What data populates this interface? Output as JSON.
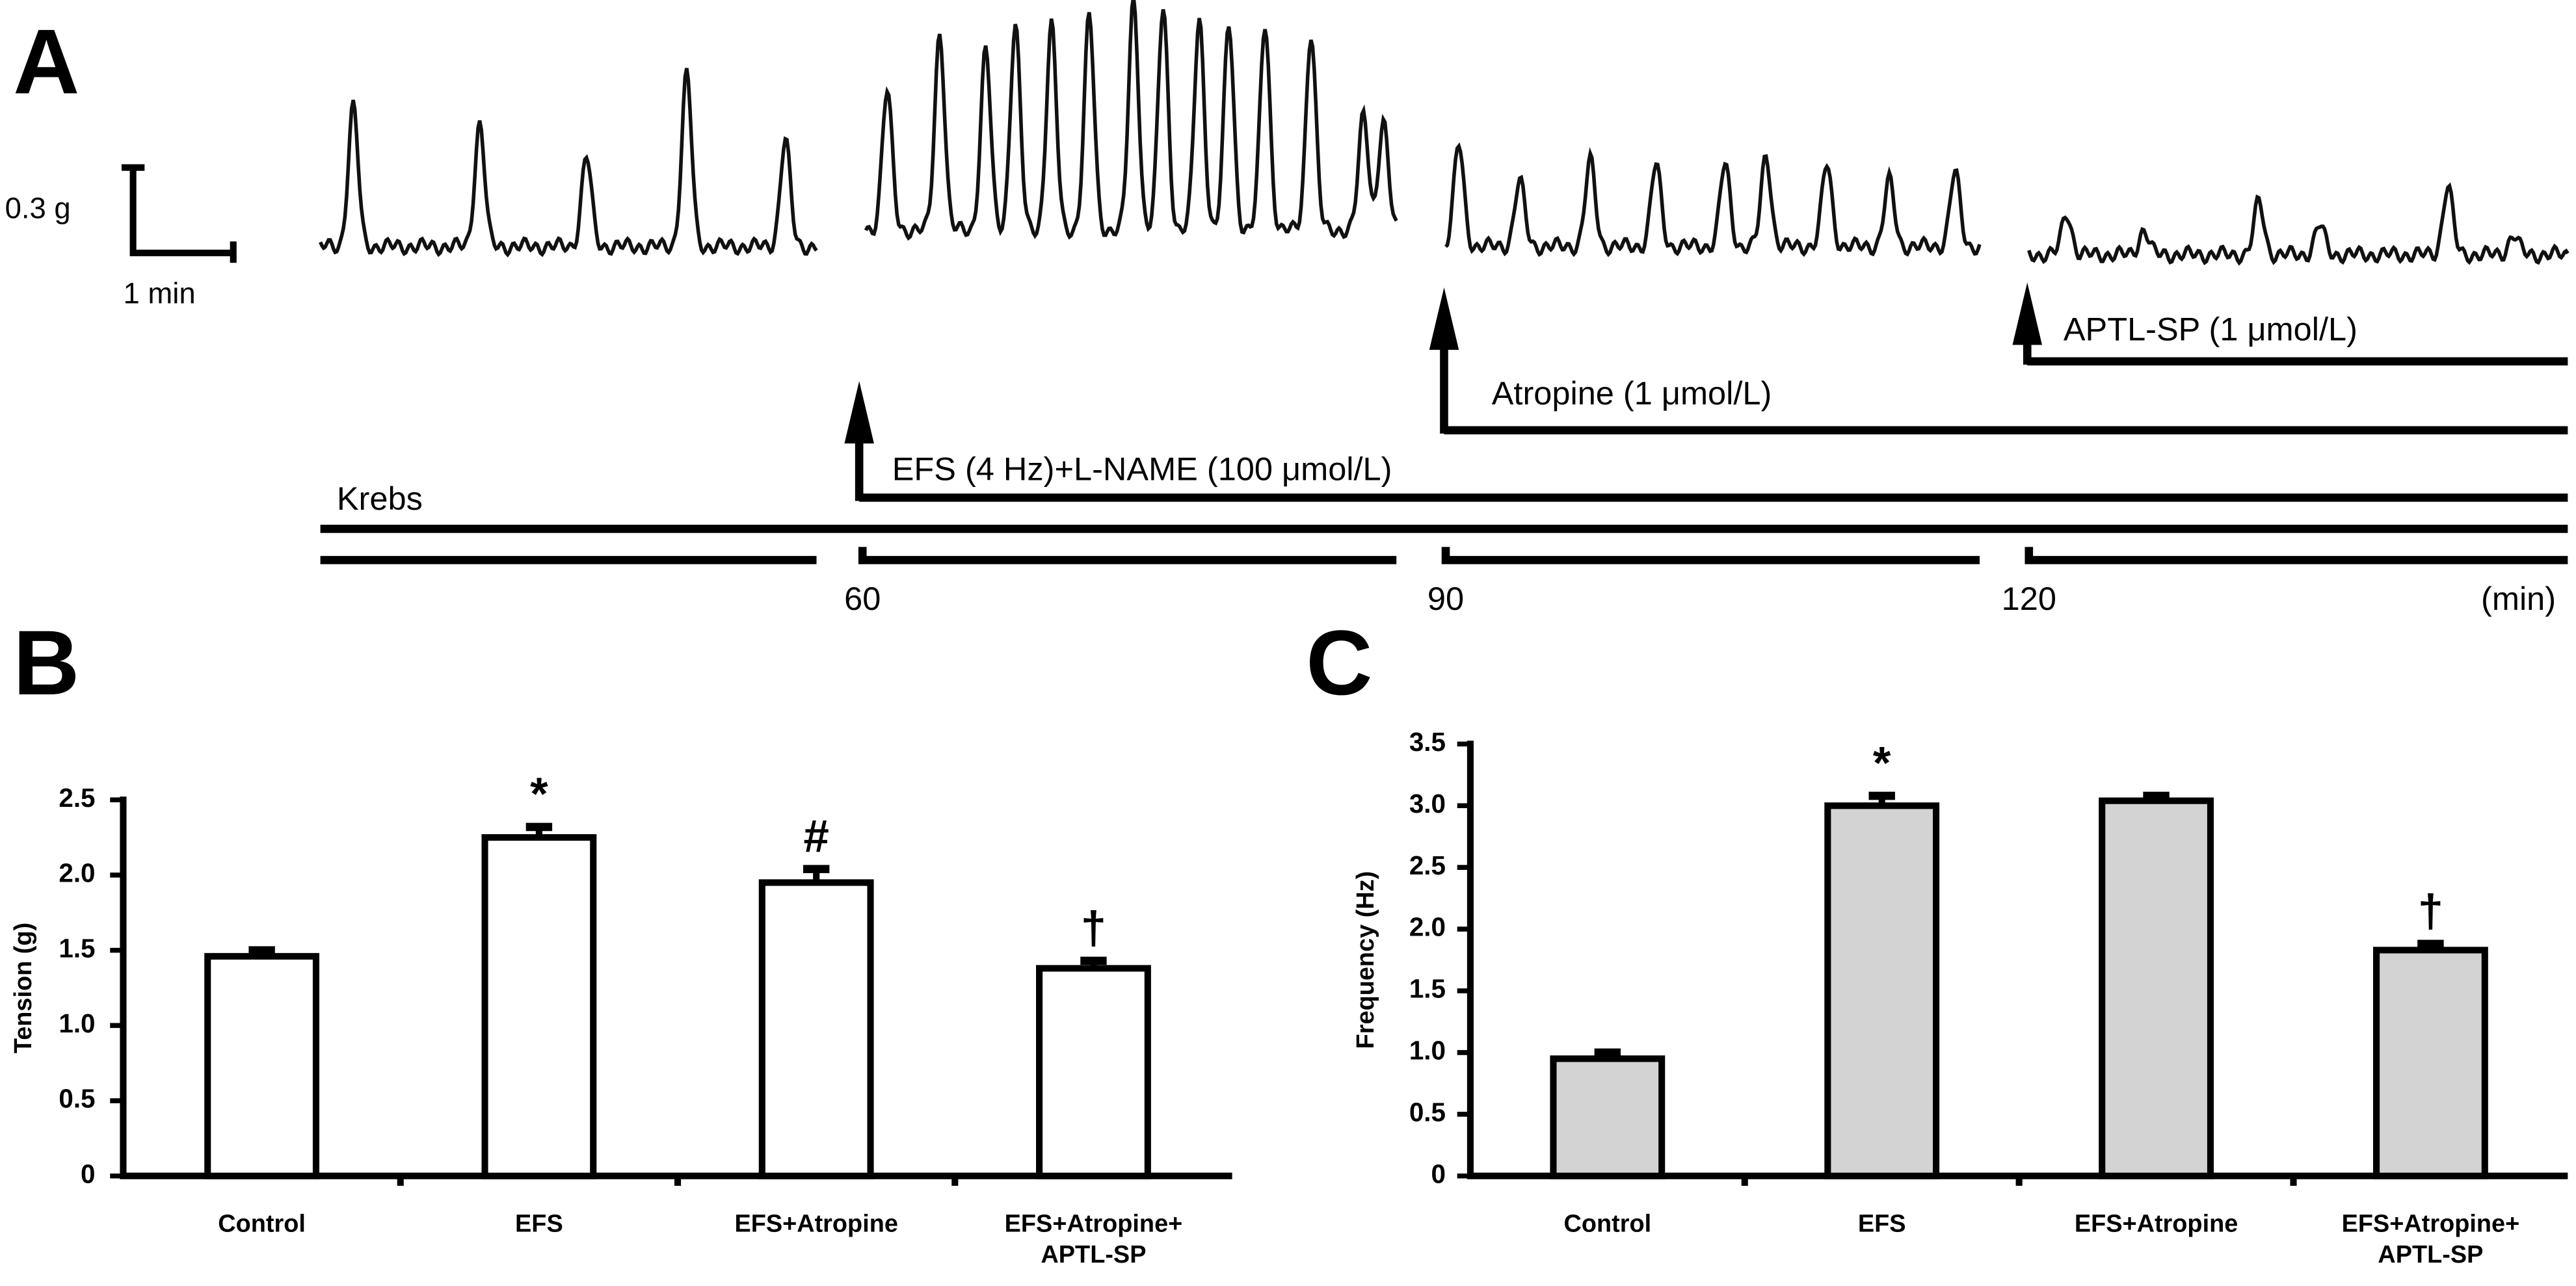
{
  "panel_a": {
    "panel_label": "A",
    "scale_y": "0.3 g",
    "scale_x": "1 min",
    "baseline": "Krebs",
    "treatments": [
      "EFS (4 Hz)+L-NAME  (100 μmol/L)",
      "Atropine (1 μmol/L)",
      "APTL-SP (1 μmol/L)"
    ],
    "time_ticks": [
      60,
      90,
      120
    ],
    "time_unit": "(min)"
  },
  "chart_data": [
    {
      "type": "bar",
      "panel_label": "B",
      "ylabel": "Tension (g)",
      "categories": [
        "Control",
        "EFS",
        "EFS+Atropine",
        "EFS+Atropine+\nAPTL-SP"
      ],
      "values": [
        1.46,
        2.25,
        1.95,
        1.38
      ],
      "errors": [
        0.04,
        0.07,
        0.09,
        0.05
      ],
      "annotations": [
        null,
        "*",
        "#",
        "†"
      ],
      "color": "#ffffff",
      "ylim": [
        0,
        2.5
      ],
      "yticks": [
        0,
        0.5,
        {
          "value": 1,
          "label": "1.0"
        },
        1.5,
        {
          "value": 2,
          "label": "2.0"
        },
        2.5
      ]
    },
    {
      "type": "bar",
      "panel_label": "C",
      "ylabel": "Frequency (Hz)",
      "categories": [
        "Control",
        "EFS",
        "EFS+Atropine",
        "EFS+Atropine+\nAPTL-SP"
      ],
      "values": [
        0.95,
        3.0,
        3.04,
        1.83
      ],
      "errors": [
        0.05,
        0.08,
        0.04,
        0.05
      ],
      "annotations": [
        null,
        "*",
        null,
        "†"
      ],
      "color": "#d3d3d3",
      "ylim": [
        0,
        3.5
      ],
      "yticks": [
        0,
        0.5,
        {
          "value": 1,
          "label": "1.0"
        },
        1.5,
        {
          "value": 2,
          "label": "2.0"
        },
        2.5,
        {
          "value": 3,
          "label": "3.0"
        },
        3.5
      ]
    }
  ]
}
